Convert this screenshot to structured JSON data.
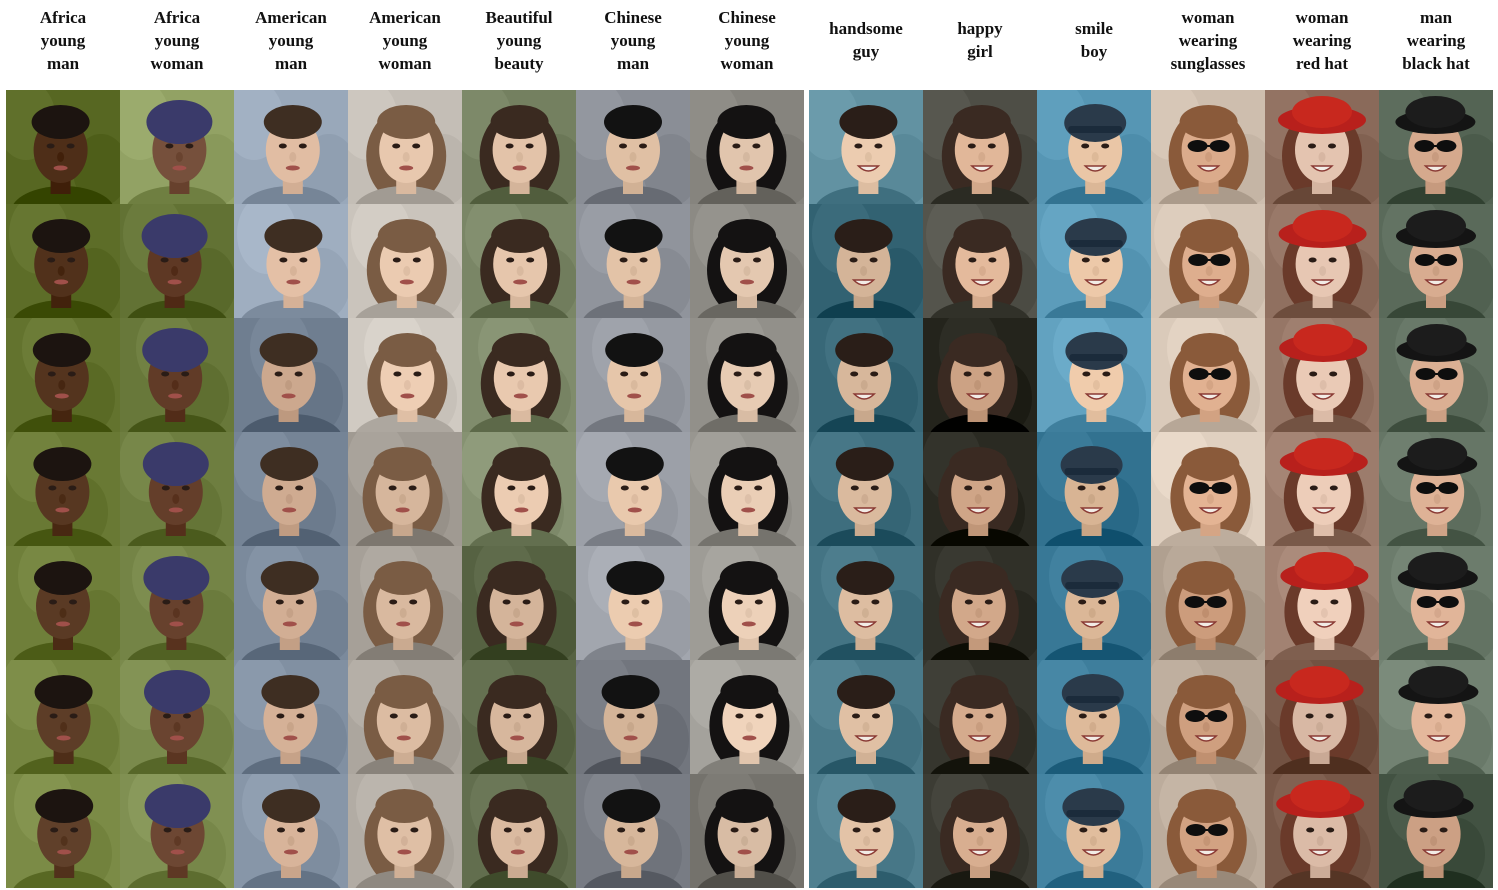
{
  "panels": [
    {
      "columns": [
        {
          "lines": [
            "Africa",
            "young",
            "man"
          ],
          "bg": "#6f7f3a",
          "skin": "#5a3a24",
          "hair": "#1c1410",
          "accessory": "none"
        },
        {
          "lines": [
            "Africa",
            "young",
            "woman"
          ],
          "bg": "#7a8a4c",
          "skin": "#6a4430",
          "hair": "#3a3a6a",
          "accessory": "headwrap"
        },
        {
          "lines": [
            "American",
            "young",
            "man"
          ],
          "bg": "#8796a8",
          "skin": "#d8b49a",
          "hair": "#3e2e22",
          "accessory": "none"
        },
        {
          "lines": [
            "American",
            "young",
            "woman"
          ],
          "bg": "#b8b2aa",
          "skin": "#e2c2a8",
          "hair": "#7a5c44",
          "accessory": "long-hair"
        },
        {
          "lines": [
            "Beautiful",
            "young",
            "beauty"
          ],
          "bg": "#6e7a5a",
          "skin": "#e0c0a6",
          "hair": "#3a2a20",
          "accessory": "long-hair"
        },
        {
          "lines": [
            "Chinese",
            "young",
            "man"
          ],
          "bg": "#8a8e96",
          "skin": "#e0c0a4",
          "hair": "#121212",
          "accessory": "none"
        },
        {
          "lines": [
            "Chinese",
            "young",
            "woman"
          ],
          "bg": "#8c8a84",
          "skin": "#e4c8b0",
          "hair": "#141212",
          "accessory": "long-hair"
        }
      ]
    },
    {
      "columns": [
        {
          "lines": [
            "handsome",
            "guy"
          ],
          "bg": "#4a7a8a",
          "skin": "#e0c0a4",
          "hair": "#2a1e18",
          "accessory": "none"
        },
        {
          "lines": [
            "happy",
            "girl"
          ],
          "bg": "#3c3c34",
          "skin": "#d8ae90",
          "hair": "#3a2a22",
          "accessory": "long-hair"
        },
        {
          "lines": [
            "smile",
            "boy"
          ],
          "bg": "#4a8aa8",
          "skin": "#e4c0a0",
          "hair": "#2a3a4a",
          "accessory": "cap"
        },
        {
          "lines": [
            "woman",
            "wearing",
            "sunglasses"
          ],
          "bg": "#c8b8a8",
          "skin": "#d8a888",
          "hair": "#8a5a3a",
          "accessory": "sunglasses"
        },
        {
          "lines": [
            "woman",
            "wearing",
            "red hat"
          ],
          "bg": "#8a6a5a",
          "skin": "#e4c4b0",
          "hair": "#6a3a2a",
          "accessory": "red-hat"
        },
        {
          "lines": [
            "man",
            "wearing",
            "black hat"
          ],
          "bg": "#5a6a5a",
          "skin": "#d8ac90",
          "hair": "#1a1a1a",
          "accessory": "black-hat"
        }
      ]
    }
  ],
  "rows": 7
}
